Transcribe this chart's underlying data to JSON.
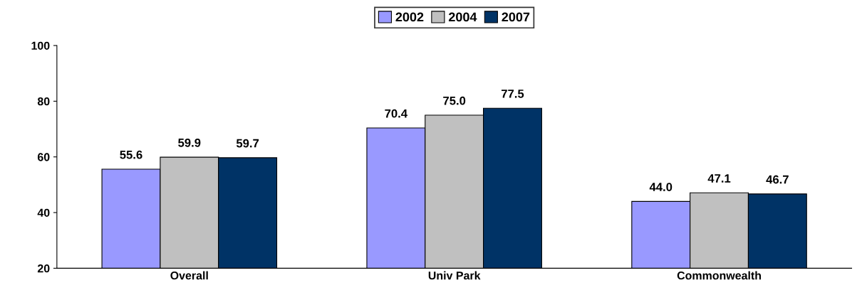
{
  "chart_data": {
    "type": "bar",
    "categories": [
      "Overall",
      "Univ Park",
      "Commonwealth"
    ],
    "series": [
      {
        "name": "2002",
        "color": "#9999ff",
        "values": [
          55.6,
          70.4,
          44.0
        ],
        "value_labels": [
          "55.6",
          "70.4",
          "44.0"
        ]
      },
      {
        "name": "2004",
        "color": "#c0c0c0",
        "values": [
          59.9,
          75.0,
          47.1
        ],
        "value_labels": [
          "59.9",
          "75.0",
          "47.1"
        ]
      },
      {
        "name": "2007",
        "color": "#003366",
        "values": [
          59.7,
          77.5,
          46.7
        ],
        "value_labels": [
          "59.7",
          "77.5",
          "46.7"
        ]
      }
    ],
    "ylim": [
      20,
      100
    ],
    "yticks": [
      20,
      40,
      60,
      80,
      100
    ],
    "grid": false,
    "legend": "top"
  }
}
